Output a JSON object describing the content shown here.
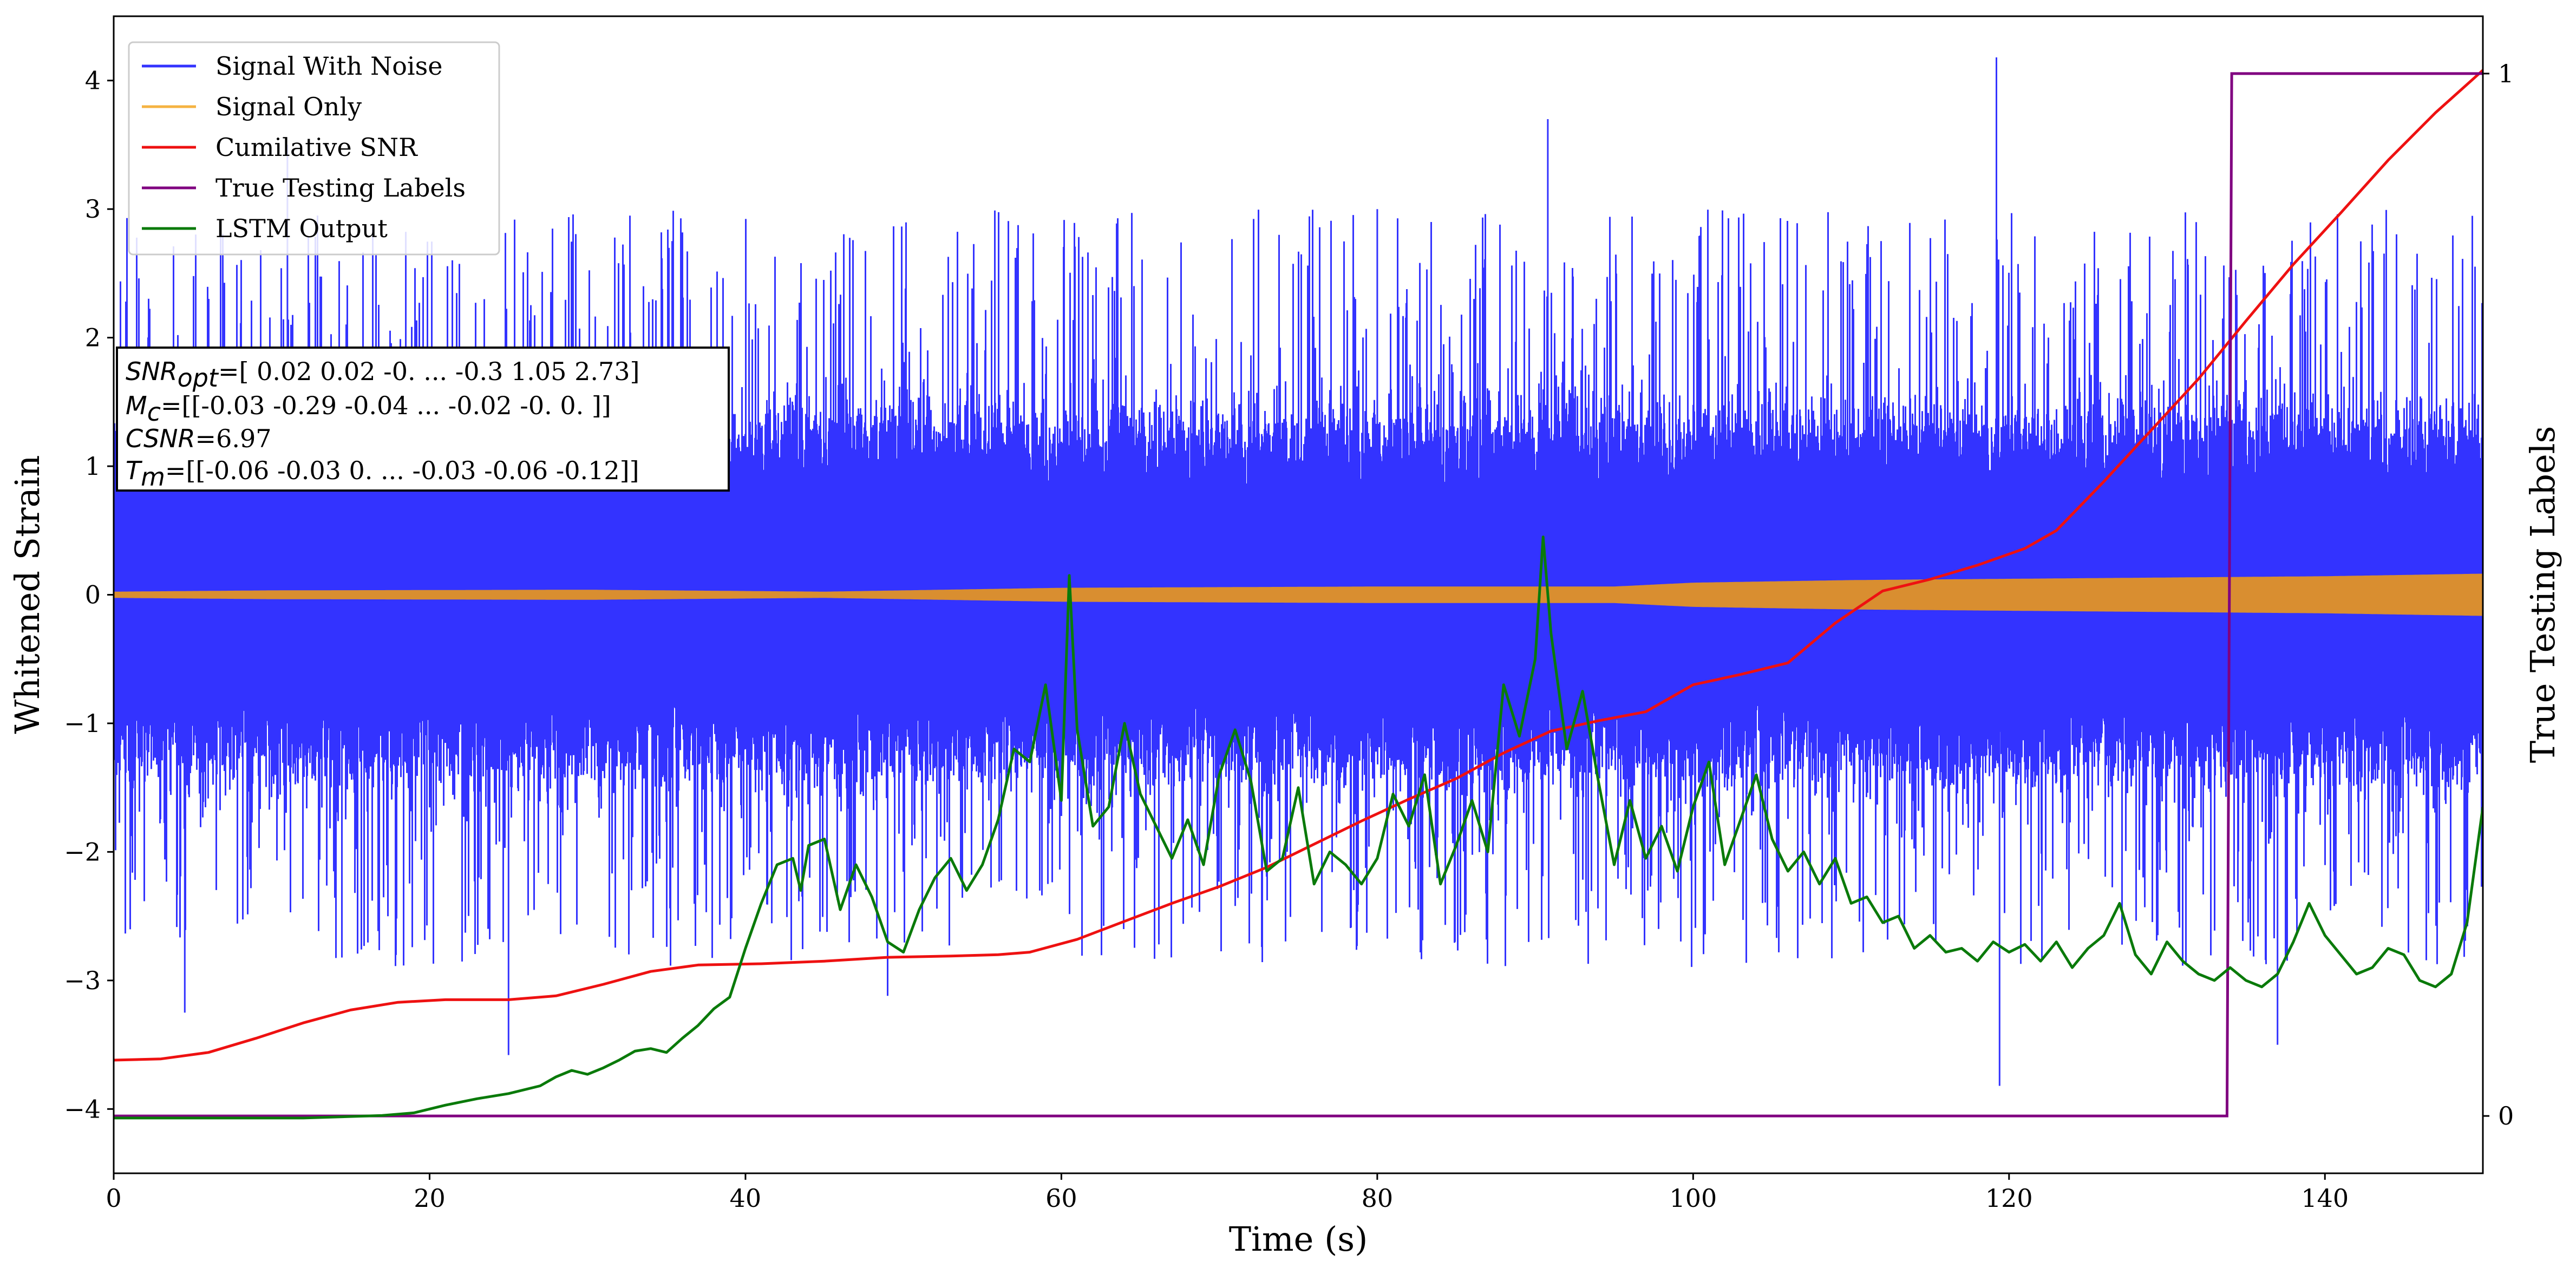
{
  "chart_data": {
    "type": "line",
    "xlabel": "Time (s)",
    "ylabel": "Whitened Strain",
    "y2label": "True Testing Labels",
    "xlim": [
      0,
      150
    ],
    "ylim": [
      -4.5,
      4.5
    ],
    "y2lim": [
      -0.055,
      1.055
    ],
    "xticks": [
      0,
      20,
      40,
      60,
      80,
      100,
      120,
      140
    ],
    "yticks": [
      -4,
      -3,
      -2,
      -1,
      0,
      1,
      2,
      3,
      4
    ],
    "y2ticks": [
      0,
      1
    ],
    "legend_position": "upper-left",
    "legend": [
      "Signal With Noise",
      "Signal Only",
      "Cumilative SNR",
      "True Testing Labels",
      "LSTM Output"
    ],
    "colors": {
      "signal_with_noise": "#3333ff",
      "signal_only": "#d98e30",
      "cumulative_snr": "#ee1111",
      "true_labels": "#800080",
      "lstm_output": "#0a7a0a"
    },
    "annotation": {
      "snr_opt_sym": "SNR",
      "snr_opt_sub": "opt",
      "snr_opt_val": "=[ 0.02  0.02 -0.   ... -0.3   1.05  2.73]",
      "mc_sym": "M",
      "mc_sub": "c",
      "mc_val": "=[[-0.03 -0.29 -0.04 ... -0.02 -0.    0.  ]]",
      "csnr_sym": "CSNR",
      "csnr_val": "=6.97",
      "tm_sym": "T",
      "tm_sub": "m",
      "tm_val": "=[[-0.06 -0.03  0.   ... -0.03 -0.06 -0.12]]"
    },
    "series": [
      {
        "name": "Signal With Noise",
        "envelope_typical": [
          -1.3,
          1.3
        ],
        "extremes": [
          {
            "x": 119.2,
            "y": 4.18
          },
          {
            "x": 119.4,
            "y": -3.82
          },
          {
            "x": 80.0,
            "y": 3.0
          },
          {
            "x": 11.0,
            "y": 3.5
          },
          {
            "x": 25.0,
            "y": -3.58
          },
          {
            "x": 90.8,
            "y": 3.7
          },
          {
            "x": 137.0,
            "y": -3.5
          },
          {
            "x": 4.5,
            "y": -3.25
          },
          {
            "x": 49.0,
            "y": -3.12
          }
        ]
      },
      {
        "name": "Signal Only",
        "amplitude": [
          [
            0,
            0.02
          ],
          [
            10,
            0.03
          ],
          [
            30,
            0.035
          ],
          [
            45,
            0.02
          ],
          [
            60,
            0.05
          ],
          [
            80,
            0.06
          ],
          [
            95,
            0.06
          ],
          [
            100,
            0.09
          ],
          [
            110,
            0.11
          ],
          [
            120,
            0.12
          ],
          [
            130,
            0.13
          ],
          [
            140,
            0.14
          ],
          [
            150,
            0.16
          ]
        ]
      },
      {
        "name": "Cumilative SNR",
        "axis": "left",
        "points": [
          [
            0,
            -3.62
          ],
          [
            3,
            -3.61
          ],
          [
            6,
            -3.56
          ],
          [
            9,
            -3.45
          ],
          [
            12,
            -3.33
          ],
          [
            15,
            -3.23
          ],
          [
            18,
            -3.17
          ],
          [
            21,
            -3.15
          ],
          [
            25,
            -3.15
          ],
          [
            28,
            -3.12
          ],
          [
            31,
            -3.03
          ],
          [
            34,
            -2.93
          ],
          [
            37,
            -2.88
          ],
          [
            41,
            -2.87
          ],
          [
            45,
            -2.85
          ],
          [
            49,
            -2.82
          ],
          [
            53,
            -2.81
          ],
          [
            56,
            -2.8
          ],
          [
            58,
            -2.78
          ],
          [
            61,
            -2.68
          ],
          [
            64,
            -2.54
          ],
          [
            67,
            -2.4
          ],
          [
            70,
            -2.27
          ],
          [
            73,
            -2.12
          ],
          [
            76,
            -1.94
          ],
          [
            79,
            -1.76
          ],
          [
            82,
            -1.59
          ],
          [
            85,
            -1.43
          ],
          [
            88,
            -1.23
          ],
          [
            91,
            -1.06
          ],
          [
            94,
            -0.98
          ],
          [
            97,
            -0.91
          ],
          [
            100,
            -0.7
          ],
          [
            103,
            -0.62
          ],
          [
            106,
            -0.53
          ],
          [
            109,
            -0.22
          ],
          [
            112,
            0.03
          ],
          [
            115,
            0.12
          ],
          [
            118,
            0.23
          ],
          [
            121,
            0.36
          ],
          [
            123,
            0.5
          ],
          [
            126,
            0.88
          ],
          [
            129,
            1.28
          ],
          [
            132,
            1.68
          ],
          [
            135,
            2.13
          ],
          [
            138,
            2.57
          ],
          [
            141,
            2.97
          ],
          [
            144,
            3.38
          ],
          [
            147,
            3.75
          ],
          [
            150,
            4.08
          ]
        ]
      },
      {
        "name": "True Testing Labels",
        "axis": "right",
        "points": [
          [
            0,
            0
          ],
          [
            133.8,
            0
          ],
          [
            134.1,
            1
          ],
          [
            150,
            1
          ]
        ]
      },
      {
        "name": "LSTM Output",
        "axis": "left",
        "points": [
          [
            0,
            -4.07
          ],
          [
            12,
            -4.07
          ],
          [
            17,
            -4.05
          ],
          [
            19,
            -4.03
          ],
          [
            21,
            -3.97
          ],
          [
            23,
            -3.92
          ],
          [
            25,
            -3.88
          ],
          [
            27,
            -3.82
          ],
          [
            28,
            -3.75
          ],
          [
            29,
            -3.7
          ],
          [
            30,
            -3.73
          ],
          [
            31,
            -3.68
          ],
          [
            32,
            -3.62
          ],
          [
            33,
            -3.55
          ],
          [
            34,
            -3.53
          ],
          [
            35,
            -3.56
          ],
          [
            36,
            -3.45
          ],
          [
            37,
            -3.35
          ],
          [
            38,
            -3.22
          ],
          [
            39,
            -3.13
          ],
          [
            40,
            -2.75
          ],
          [
            41,
            -2.4
          ],
          [
            42,
            -2.1
          ],
          [
            43,
            -2.05
          ],
          [
            43.5,
            -2.3
          ],
          [
            44,
            -1.95
          ],
          [
            45,
            -1.9
          ],
          [
            46,
            -2.45
          ],
          [
            47,
            -2.1
          ],
          [
            48,
            -2.35
          ],
          [
            49,
            -2.7
          ],
          [
            50,
            -2.78
          ],
          [
            51,
            -2.45
          ],
          [
            52,
            -2.2
          ],
          [
            53,
            -2.05
          ],
          [
            54,
            -2.3
          ],
          [
            55,
            -2.1
          ],
          [
            56,
            -1.75
          ],
          [
            57,
            -1.2
          ],
          [
            58,
            -1.3
          ],
          [
            59,
            -0.7
          ],
          [
            60,
            -1.6
          ],
          [
            60.5,
            0.15
          ],
          [
            61,
            -1.05
          ],
          [
            62,
            -1.8
          ],
          [
            63,
            -1.65
          ],
          [
            64,
            -1.0
          ],
          [
            65,
            -1.55
          ],
          [
            66,
            -1.8
          ],
          [
            67,
            -2.05
          ],
          [
            68,
            -1.75
          ],
          [
            69,
            -2.1
          ],
          [
            70,
            -1.4
          ],
          [
            71,
            -1.05
          ],
          [
            72,
            -1.45
          ],
          [
            73,
            -2.15
          ],
          [
            74,
            -2.05
          ],
          [
            75,
            -1.5
          ],
          [
            76,
            -2.25
          ],
          [
            77,
            -2.0
          ],
          [
            78,
            -2.1
          ],
          [
            79,
            -2.25
          ],
          [
            80,
            -2.05
          ],
          [
            81,
            -1.55
          ],
          [
            82,
            -1.8
          ],
          [
            83,
            -1.4
          ],
          [
            84,
            -2.25
          ],
          [
            85,
            -1.95
          ],
          [
            86,
            -1.6
          ],
          [
            87,
            -2.0
          ],
          [
            88,
            -0.7
          ],
          [
            89,
            -1.1
          ],
          [
            90,
            -0.5
          ],
          [
            90.5,
            0.45
          ],
          [
            91,
            -0.3
          ],
          [
            92,
            -1.2
          ],
          [
            93,
            -0.75
          ],
          [
            94,
            -1.45
          ],
          [
            95,
            -2.1
          ],
          [
            96,
            -1.6
          ],
          [
            97,
            -2.05
          ],
          [
            98,
            -1.8
          ],
          [
            99,
            -2.15
          ],
          [
            100,
            -1.65
          ],
          [
            101,
            -1.3
          ],
          [
            102,
            -2.1
          ],
          [
            103,
            -1.75
          ],
          [
            104,
            -1.4
          ],
          [
            105,
            -1.9
          ],
          [
            106,
            -2.15
          ],
          [
            107,
            -2.0
          ],
          [
            108,
            -2.25
          ],
          [
            109,
            -2.05
          ],
          [
            110,
            -2.4
          ],
          [
            111,
            -2.35
          ],
          [
            112,
            -2.55
          ],
          [
            113,
            -2.5
          ],
          [
            114,
            -2.75
          ],
          [
            115,
            -2.65
          ],
          [
            116,
            -2.78
          ],
          [
            117,
            -2.75
          ],
          [
            118,
            -2.85
          ],
          [
            119,
            -2.7
          ],
          [
            120,
            -2.78
          ],
          [
            121,
            -2.72
          ],
          [
            122,
            -2.85
          ],
          [
            123,
            -2.7
          ],
          [
            124,
            -2.9
          ],
          [
            125,
            -2.75
          ],
          [
            126,
            -2.65
          ],
          [
            127,
            -2.4
          ],
          [
            128,
            -2.8
          ],
          [
            129,
            -2.95
          ],
          [
            130,
            -2.7
          ],
          [
            131,
            -2.85
          ],
          [
            132,
            -2.95
          ],
          [
            133,
            -3.0
          ],
          [
            134,
            -2.9
          ],
          [
            135,
            -3.0
          ],
          [
            136,
            -3.05
          ],
          [
            137,
            -2.95
          ],
          [
            138,
            -2.7
          ],
          [
            139,
            -2.4
          ],
          [
            140,
            -2.65
          ],
          [
            141,
            -2.8
          ],
          [
            142,
            -2.95
          ],
          [
            143,
            -2.9
          ],
          [
            144,
            -2.75
          ],
          [
            145,
            -2.8
          ],
          [
            146,
            -3.0
          ],
          [
            147,
            -3.05
          ],
          [
            148,
            -2.95
          ],
          [
            149,
            -2.55
          ],
          [
            150,
            -1.65
          ]
        ]
      }
    ]
  }
}
